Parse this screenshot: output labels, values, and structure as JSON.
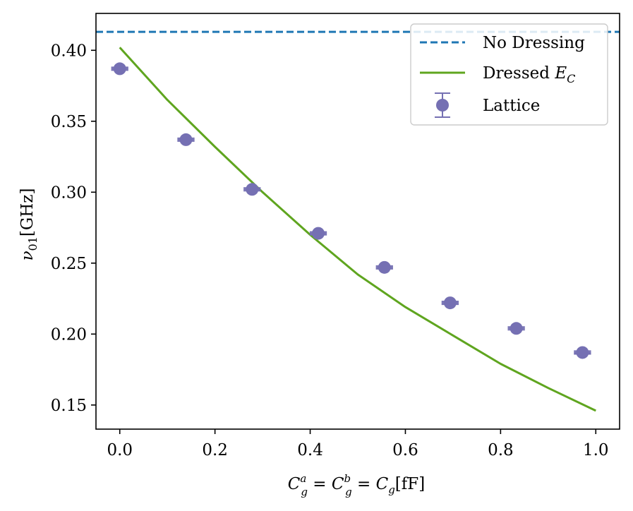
{
  "chart_data": {
    "type": "scatter",
    "title": "",
    "xlabel": "C_g^a = C_g^b = C_g [fF]",
    "ylabel": "ν_01 [GHz]",
    "xlim": [
      -0.05,
      1.05
    ],
    "ylim": [
      0.133,
      0.426
    ],
    "grid": false,
    "legend_position": "top-right",
    "x_ticks": [
      0.0,
      0.2,
      0.4,
      0.6,
      0.8,
      1.0
    ],
    "x_tick_labels": [
      "0.0",
      "0.2",
      "0.4",
      "0.6",
      "0.8",
      "1.0"
    ],
    "y_ticks": [
      0.15,
      0.2,
      0.25,
      0.3,
      0.35,
      0.4
    ],
    "y_tick_labels": [
      "0.15",
      "0.20",
      "0.25",
      "0.30",
      "0.35",
      "0.40"
    ],
    "series": [
      {
        "name": "No Dressing",
        "kind": "hline",
        "style": "dashed",
        "color": "#1f77b4",
        "y": 0.413
      },
      {
        "name": "Dressed E_C",
        "kind": "line",
        "style": "solid",
        "color": "#5fa51f",
        "x": [
          0.0,
          0.1,
          0.2,
          0.3,
          0.4,
          0.5,
          0.6,
          0.7,
          0.8,
          0.9,
          1.0
        ],
        "y": [
          0.402,
          0.365,
          0.332,
          0.3,
          0.27,
          0.242,
          0.219,
          0.199,
          0.179,
          0.162,
          0.146
        ]
      },
      {
        "name": "Lattice",
        "kind": "errorbar",
        "color": "#7570b3",
        "x": [
          0.0,
          0.139,
          0.278,
          0.417,
          0.556,
          0.694,
          0.833,
          0.972
        ],
        "y": [
          0.387,
          0.337,
          0.302,
          0.271,
          0.247,
          0.222,
          0.204,
          0.187
        ],
        "xerr": [
          0.018,
          0.018,
          0.018,
          0.018,
          0.018,
          0.018,
          0.018,
          0.018
        ],
        "yerr": [
          0.001,
          0.001,
          0.001,
          0.001,
          0.001,
          0.001,
          0.001,
          0.001
        ]
      }
    ]
  }
}
